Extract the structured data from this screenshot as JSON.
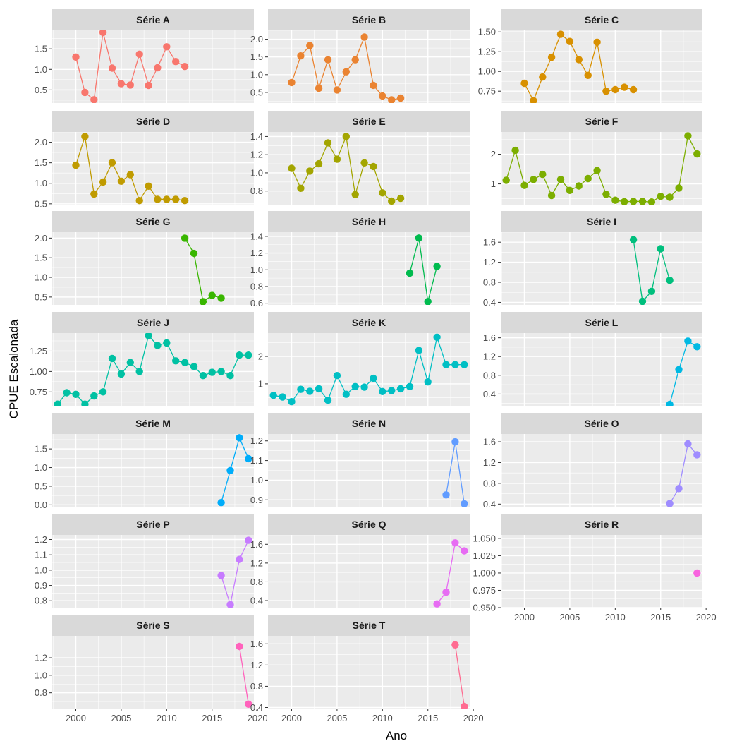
{
  "chart_data": {
    "type": "line",
    "layout": "facet_wrap",
    "xlabel": "Ano",
    "ylabel": "CPUE Escalonada",
    "xlim": [
      1997.4,
      2019.6
    ],
    "x_ticks": [
      2000,
      2005,
      2010,
      2015,
      2020
    ],
    "x_tick_labels": [
      "2000",
      "2005",
      "2010",
      "2015",
      "2020"
    ],
    "grid": true,
    "legend": "none",
    "facets": [
      {
        "name": "Série A",
        "color": "#F8766D",
        "ylim": [
          0.18,
          1.95
        ],
        "y_ticks": [
          0.5,
          1.0,
          1.5
        ],
        "y_tick_labels": [
          "0.5",
          "1.0",
          "1.5"
        ],
        "x": [
          2000,
          2001,
          2002,
          2003,
          2004,
          2005,
          2006,
          2007,
          2008,
          2009,
          2010,
          2011,
          2012
        ],
        "y": [
          1.3,
          0.44,
          0.26,
          1.9,
          1.03,
          0.65,
          0.62,
          1.37,
          0.61,
          1.04,
          1.55,
          1.19,
          1.07
        ]
      },
      {
        "name": "Série B",
        "color": "#EA8331",
        "ylim": [
          0.2,
          2.25
        ],
        "y_ticks": [
          0.5,
          1.0,
          1.5,
          2.0
        ],
        "y_tick_labels": [
          "0.5",
          "1.0",
          "1.5",
          "2.0"
        ],
        "x": [
          2000,
          2001,
          2002,
          2003,
          2004,
          2005,
          2006,
          2007,
          2008,
          2009,
          2010,
          2011,
          2012
        ],
        "y": [
          0.78,
          1.53,
          1.82,
          0.62,
          1.42,
          0.57,
          1.08,
          1.42,
          2.06,
          0.7,
          0.4,
          0.29,
          0.34
        ]
      },
      {
        "name": "Série C",
        "color": "#D89000",
        "ylim": [
          0.6,
          1.52
        ],
        "y_ticks": [
          0.75,
          1.0,
          1.25,
          1.5
        ],
        "y_tick_labels": [
          "0.75",
          "1.00",
          "1.25",
          "1.50"
        ],
        "x": [
          2000,
          2001,
          2002,
          2003,
          2004,
          2005,
          2006,
          2007,
          2008,
          2009,
          2010,
          2011,
          2012
        ],
        "y": [
          0.85,
          0.63,
          0.93,
          1.18,
          1.47,
          1.38,
          1.15,
          0.95,
          1.37,
          0.75,
          0.77,
          0.8,
          0.77
        ]
      },
      {
        "name": "Série D",
        "color": "#C09B00",
        "ylim": [
          0.48,
          2.25
        ],
        "y_ticks": [
          0.5,
          1.0,
          1.5,
          2.0
        ],
        "y_tick_labels": [
          "0.5",
          "1.0",
          "1.5",
          "2.0"
        ],
        "x": [
          2000,
          2001,
          2002,
          2003,
          2004,
          2005,
          2006,
          2007,
          2008,
          2009,
          2010,
          2011,
          2012
        ],
        "y": [
          1.44,
          2.14,
          0.74,
          1.03,
          1.5,
          1.05,
          1.21,
          0.58,
          0.93,
          0.61,
          0.61,
          0.61,
          0.58
        ]
      },
      {
        "name": "Série E",
        "color": "#A3A500",
        "ylim": [
          0.65,
          1.45
        ],
        "y_ticks": [
          0.8,
          1.0,
          1.2,
          1.4
        ],
        "y_tick_labels": [
          "0.8",
          "1.0",
          "1.2",
          "1.4"
        ],
        "x": [
          2000,
          2001,
          2002,
          2003,
          2004,
          2005,
          2006,
          2007,
          2008,
          2009,
          2010,
          2011,
          2012
        ],
        "y": [
          1.05,
          0.83,
          1.02,
          1.1,
          1.33,
          1.15,
          1.4,
          0.76,
          1.11,
          1.07,
          0.78,
          0.69,
          0.72
        ]
      },
      {
        "name": "Série F",
        "color": "#7CAE00",
        "ylim": [
          0.3,
          2.75
        ],
        "y_ticks": [
          1,
          2
        ],
        "y_tick_labels": [
          "1",
          "2"
        ],
        "x": [
          1998,
          1999,
          2000,
          2001,
          2002,
          2003,
          2004,
          2005,
          2006,
          2007,
          2008,
          2009,
          2010,
          2011,
          2012,
          2013,
          2014,
          2015,
          2016,
          2017,
          2018,
          2019
        ],
        "y": [
          1.12,
          2.13,
          0.95,
          1.15,
          1.32,
          0.61,
          1.15,
          0.78,
          0.93,
          1.18,
          1.45,
          0.65,
          0.45,
          0.4,
          0.41,
          0.41,
          0.39,
          0.58,
          0.55,
          0.86,
          2.62,
          2.01
        ]
      },
      {
        "name": "Série G",
        "color": "#39B600",
        "ylim": [
          0.3,
          2.15
        ],
        "y_ticks": [
          0.5,
          1.0,
          1.5,
          2.0
        ],
        "y_tick_labels": [
          "0.5",
          "1.0",
          "1.5",
          "2.0"
        ],
        "x": [
          2012,
          2013,
          2014,
          2015,
          2016
        ],
        "y": [
          2.0,
          1.61,
          0.38,
          0.54,
          0.47
        ]
      },
      {
        "name": "Série H",
        "color": "#00BB4E",
        "ylim": [
          0.58,
          1.45
        ],
        "y_ticks": [
          0.6,
          0.8,
          1.0,
          1.2,
          1.4
        ],
        "y_tick_labels": [
          "0.6",
          "0.8",
          "1.0",
          "1.2",
          "1.4"
        ],
        "x": [
          2013,
          2014,
          2015,
          2016
        ],
        "y": [
          0.96,
          1.38,
          0.62,
          1.04
        ]
      },
      {
        "name": "Série I",
        "color": "#00BF7D",
        "ylim": [
          0.35,
          1.8
        ],
        "y_ticks": [
          0.4,
          0.8,
          1.2,
          1.6
        ],
        "y_tick_labels": [
          "0.4",
          "0.8",
          "1.2",
          "1.6"
        ],
        "x": [
          2012,
          2013,
          2014,
          2015,
          2016
        ],
        "y": [
          1.65,
          0.42,
          0.62,
          1.47,
          0.84
        ]
      },
      {
        "name": "Série J",
        "color": "#00C1A3",
        "ylim": [
          0.58,
          1.47
        ],
        "y_ticks": [
          0.75,
          1.0,
          1.25
        ],
        "y_tick_labels": [
          "0.75",
          "1.00",
          "1.25"
        ],
        "x": [
          1998,
          1999,
          2000,
          2001,
          2002,
          2003,
          2004,
          2005,
          2006,
          2007,
          2008,
          2009,
          2010,
          2011,
          2012,
          2013,
          2014,
          2015,
          2016,
          2017,
          2018,
          2019
        ],
        "y": [
          0.6,
          0.74,
          0.72,
          0.6,
          0.7,
          0.75,
          1.16,
          0.97,
          1.11,
          1.0,
          1.44,
          1.32,
          1.35,
          1.13,
          1.11,
          1.06,
          0.95,
          0.99,
          1.0,
          0.95,
          1.2,
          1.2
        ]
      },
      {
        "name": "Série K",
        "color": "#00BFC4",
        "ylim": [
          0.2,
          2.85
        ],
        "y_ticks": [
          1,
          2
        ],
        "y_tick_labels": [
          "1",
          "2"
        ],
        "x": [
          1998,
          1999,
          2000,
          2001,
          2002,
          2003,
          2004,
          2005,
          2006,
          2007,
          2008,
          2009,
          2010,
          2011,
          2012,
          2013,
          2014,
          2015,
          2016,
          2017,
          2018,
          2019
        ],
        "y": [
          0.58,
          0.52,
          0.35,
          0.8,
          0.73,
          0.82,
          0.4,
          1.3,
          0.62,
          0.9,
          0.88,
          1.2,
          0.72,
          0.75,
          0.82,
          0.9,
          2.22,
          1.07,
          2.7,
          1.7,
          1.7,
          1.7
        ]
      },
      {
        "name": "Série L",
        "color": "#00B9E3",
        "ylim": [
          0.15,
          1.7
        ],
        "y_ticks": [
          0.4,
          0.8,
          1.2,
          1.6
        ],
        "y_tick_labels": [
          "0.4",
          "0.8",
          "1.2",
          "1.6"
        ],
        "x": [
          2016,
          2017,
          2018,
          2019
        ],
        "y": [
          0.18,
          0.92,
          1.53,
          1.41
        ]
      },
      {
        "name": "Série M",
        "color": "#00ADFA",
        "ylim": [
          -0.05,
          1.9
        ],
        "y_ticks": [
          0.0,
          0.5,
          1.0,
          1.5
        ],
        "y_tick_labels": [
          "0.0",
          "0.5",
          "1.0",
          "1.5"
        ],
        "x": [
          2016,
          2017,
          2018,
          2019
        ],
        "y": [
          0.06,
          0.92,
          1.8,
          1.24
        ]
      },
      {
        "name": "Série N",
        "color": "#619CFF",
        "ylim": [
          0.865,
          1.235
        ],
        "y_ticks": [
          0.9,
          1.0,
          1.1,
          1.2
        ],
        "y_tick_labels": [
          "0.9",
          "1.0",
          "1.1",
          "1.2"
        ],
        "x": [
          2017,
          2018,
          2019
        ],
        "y": [
          0.925,
          1.195,
          0.88
        ]
      },
      {
        "name": "Série O",
        "color": "#9F8CFF",
        "ylim": [
          0.35,
          1.75
        ],
        "y_ticks": [
          0.4,
          0.8,
          1.2,
          1.6
        ],
        "y_tick_labels": [
          "0.4",
          "0.8",
          "1.2",
          "1.6"
        ],
        "x": [
          2016,
          2017,
          2018,
          2019
        ],
        "y": [
          0.41,
          0.7,
          1.56,
          1.35
        ]
      },
      {
        "name": "Série P",
        "color": "#C77CFF",
        "ylim": [
          0.755,
          1.23
        ],
        "y_ticks": [
          0.8,
          0.9,
          1.0,
          1.1,
          1.2
        ],
        "y_tick_labels": [
          "0.8",
          "0.9",
          "1.0",
          "1.1",
          "1.2"
        ],
        "x": [
          2016,
          2017,
          2018,
          2019
        ],
        "y": [
          0.965,
          0.775,
          1.07,
          1.195
        ]
      },
      {
        "name": "Série Q",
        "color": "#E76BF3",
        "ylim": [
          0.25,
          1.8
        ],
        "y_ticks": [
          0.4,
          0.8,
          1.2,
          1.6
        ],
        "y_tick_labels": [
          "0.4",
          "0.8",
          "1.2",
          "1.6"
        ],
        "x": [
          2016,
          2017,
          2018,
          2019
        ],
        "y": [
          0.33,
          0.58,
          1.63,
          1.46
        ]
      },
      {
        "name": "Série R",
        "color": "#F863DF",
        "ylim": [
          0.95,
          1.055
        ],
        "y_ticks": [
          0.95,
          0.975,
          1.0,
          1.025,
          1.05
        ],
        "y_tick_labels": [
          "0.950",
          "0.975",
          "1.000",
          "1.025",
          "1.050"
        ],
        "x": [
          2019
        ],
        "y": [
          1.0
        ]
      },
      {
        "name": "Série S",
        "color": "#FF62BC",
        "ylim": [
          0.62,
          1.45
        ],
        "y_ticks": [
          0.8,
          1.0,
          1.2
        ],
        "y_tick_labels": [
          "0.8",
          "1.0",
          "1.2"
        ],
        "x": [
          2018,
          2019
        ],
        "y": [
          1.33,
          0.67
        ]
      },
      {
        "name": "Série T",
        "color": "#FF6C91",
        "ylim": [
          0.38,
          1.75
        ],
        "y_ticks": [
          0.4,
          0.8,
          1.2,
          1.6
        ],
        "y_tick_labels": [
          "0.4",
          "0.8",
          "1.2",
          "1.6"
        ],
        "x": [
          2018,
          2019
        ],
        "y": [
          1.58,
          0.42
        ]
      }
    ]
  }
}
